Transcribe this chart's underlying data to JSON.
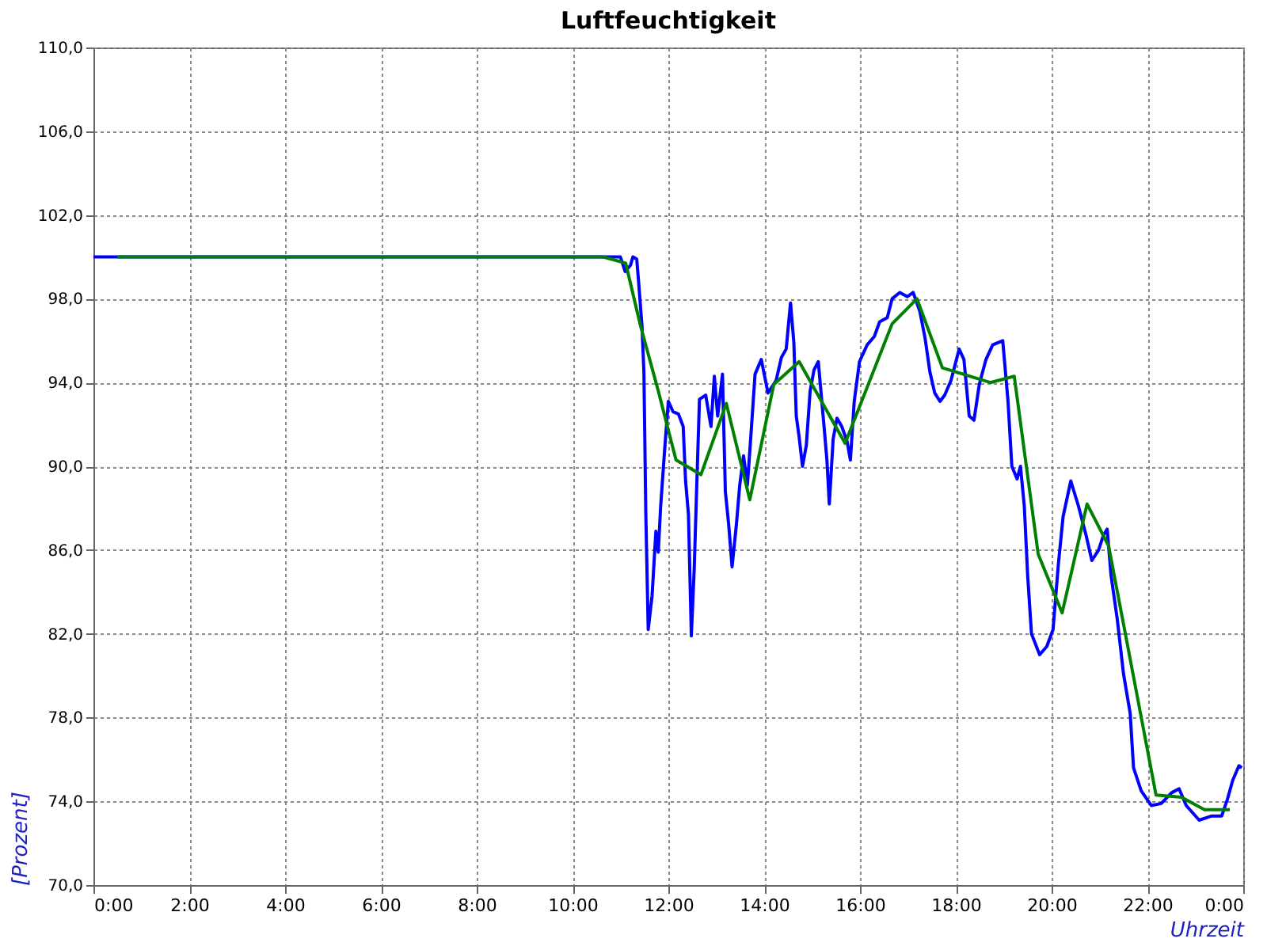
{
  "chart_data": {
    "type": "line",
    "title": "Luftfeuchtigkeit",
    "xlabel": "Uhrzeit",
    "ylabel": "[Prozent]",
    "xlim": [
      0,
      24
    ],
    "xticks": [
      {
        "value": 0,
        "label": "0:00"
      },
      {
        "value": 2,
        "label": "2:00"
      },
      {
        "value": 4,
        "label": "4:00"
      },
      {
        "value": 6,
        "label": "6:00"
      },
      {
        "value": 8,
        "label": "8:00"
      },
      {
        "value": 10,
        "label": "10:00"
      },
      {
        "value": 12,
        "label": "12:00"
      },
      {
        "value": 14,
        "label": "14:00"
      },
      {
        "value": 16,
        "label": "16:00"
      },
      {
        "value": 18,
        "label": "18:00"
      },
      {
        "value": 20,
        "label": "20:00"
      },
      {
        "value": 22,
        "label": "22:00"
      },
      {
        "value": 24,
        "label": "0:00"
      }
    ],
    "ylim": [
      70,
      110
    ],
    "yticks": [
      {
        "value": 70,
        "label": "70,0"
      },
      {
        "value": 74,
        "label": "74,0"
      },
      {
        "value": 78,
        "label": "78,0"
      },
      {
        "value": 82,
        "label": "82,0"
      },
      {
        "value": 86,
        "label": "86,0"
      },
      {
        "value": 90,
        "label": "90,0"
      },
      {
        "value": 94,
        "label": "94,0"
      },
      {
        "value": 98,
        "label": "98,0"
      },
      {
        "value": 102,
        "label": "102,0"
      },
      {
        "value": 106,
        "label": "106,0"
      },
      {
        "value": 110,
        "label": "110,0"
      }
    ],
    "grid": true,
    "line_style": "solid",
    "series": [
      {
        "color": "#0000ff",
        "x": [
          0,
          11.0,
          11.1,
          11.21,
          11.26,
          11.34,
          11.38,
          11.45,
          11.49,
          11.53,
          11.58,
          11.66,
          11.74,
          11.79,
          11.84,
          11.92,
          12.0,
          12.1,
          12.21,
          12.31,
          12.36,
          12.42,
          12.48,
          12.54,
          12.6,
          12.65,
          12.78,
          12.89,
          12.96,
          13.03,
          13.13,
          13.19,
          13.26,
          13.33,
          13.42,
          13.49,
          13.57,
          13.65,
          13.73,
          13.81,
          13.94,
          14.01,
          14.08,
          14.25,
          14.36,
          14.46,
          14.55,
          14.62,
          14.67,
          14.73,
          14.8,
          14.88,
          14.96,
          15.04,
          15.13,
          15.25,
          15.31,
          15.36,
          15.44,
          15.52,
          15.62,
          15.73,
          15.8,
          15.88,
          15.99,
          16.15,
          16.3,
          16.41,
          16.57,
          16.67,
          16.83,
          16.99,
          17.11,
          17.25,
          17.36,
          17.46,
          17.56,
          17.67,
          17.77,
          17.9,
          18.07,
          18.17,
          18.28,
          18.38,
          18.49,
          18.63,
          18.77,
          18.98,
          19.09,
          19.17,
          19.28,
          19.35,
          19.43,
          19.5,
          19.58,
          19.75,
          19.9,
          20.03,
          20.14,
          20.24,
          20.4,
          20.56,
          20.72,
          20.84,
          20.98,
          21.08,
          21.16,
          21.24,
          21.37,
          21.5,
          21.64,
          21.71,
          21.87,
          22.08,
          22.29,
          22.5,
          22.66,
          22.81,
          23.08,
          23.34,
          23.55,
          23.67,
          23.78,
          23.91,
          23.97
        ],
        "values": [
          100,
          100,
          99.3,
          99.6,
          100,
          99.9,
          98.8,
          96.7,
          94.5,
          87.7,
          82.2,
          83.8,
          86.9,
          85.9,
          88.1,
          90.7,
          93.1,
          92.6,
          92.5,
          91.9,
          89.3,
          87.7,
          81.9,
          85.1,
          89.6,
          93.2,
          93.4,
          91.9,
          94.3,
          92.4,
          94.4,
          88.8,
          87.2,
          85.2,
          87.2,
          89.1,
          90.5,
          89.1,
          91.7,
          94.4,
          95.1,
          94.3,
          93.5,
          94.1,
          95.2,
          95.6,
          97.8,
          95.9,
          92.4,
          91.4,
          90.0,
          91.0,
          93.6,
          94.6,
          95.0,
          91.9,
          90.3,
          88.2,
          91.3,
          92.3,
          91.9,
          91.2,
          90.3,
          93.1,
          95.0,
          95.8,
          96.2,
          96.9,
          97.1,
          98.0,
          98.3,
          98.1,
          98.3,
          97.4,
          96.1,
          94.5,
          93.5,
          93.1,
          93.4,
          94.1,
          95.6,
          95.1,
          92.4,
          92.2,
          93.9,
          95.1,
          95.8,
          96.0,
          93.1,
          90.0,
          89.4,
          90.0,
          88.1,
          84.8,
          82.0,
          81.0,
          81.4,
          82.2,
          85.3,
          87.6,
          89.3,
          88.1,
          86.7,
          85.5,
          86.0,
          86.7,
          87.0,
          84.8,
          82.7,
          80.1,
          78.2,
          75.6,
          74.5,
          73.8,
          73.9,
          74.4,
          74.6,
          73.8,
          73.1,
          73.3,
          73.3,
          74.1,
          75.0,
          75.7,
          75.6
        ]
      },
      {
        "color": "#008000",
        "x": [
          0.5,
          10.64,
          11.11,
          11.42,
          11.79,
          12.16,
          12.68,
          13.21,
          13.7,
          14.2,
          14.73,
          15.69,
          16.67,
          17.19,
          17.72,
          18.72,
          19.22,
          19.72,
          20.22,
          20.74,
          21.19,
          22.18,
          22.71,
          23.19,
          23.72
        ],
        "values": [
          100,
          100,
          99.7,
          96.7,
          93.6,
          90.3,
          89.6,
          93.0,
          88.4,
          93.9,
          95.0,
          91.1,
          96.8,
          98.0,
          94.7,
          94.0,
          94.3,
          85.8,
          83.0,
          88.2,
          86.2,
          74.3,
          74.2,
          73.6,
          73.6
        ]
      }
    ]
  }
}
